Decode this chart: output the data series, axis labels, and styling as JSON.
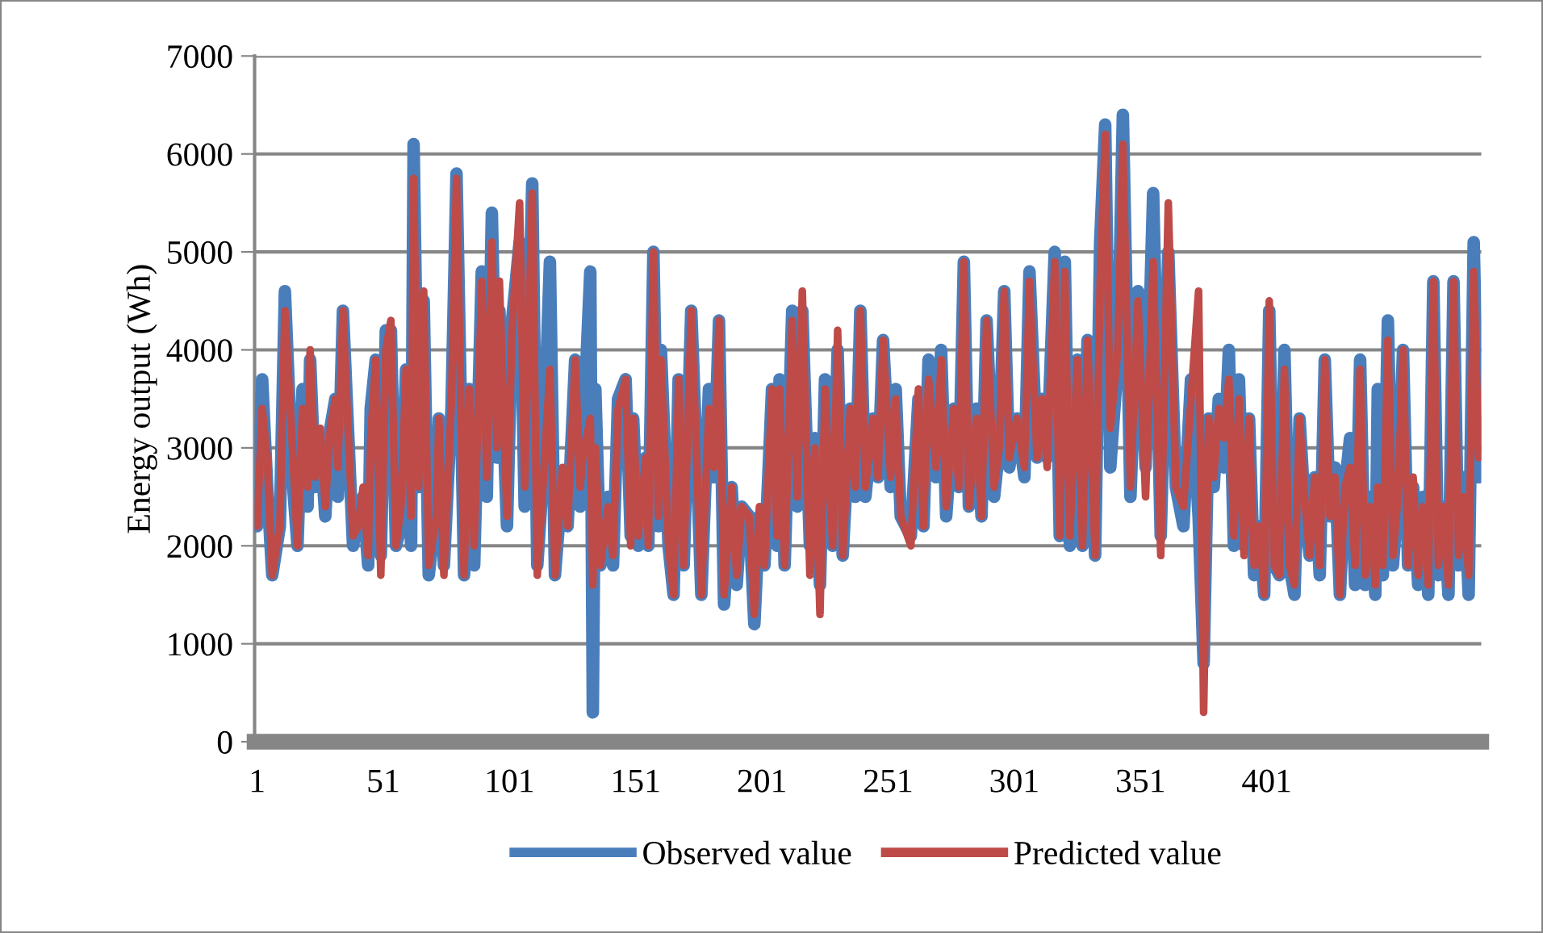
{
  "chart_data": {
    "type": "line",
    "ylabel": "Energy output (Wh)",
    "xlim": [
      0,
      486
    ],
    "xticks": [
      1,
      51,
      101,
      151,
      201,
      251,
      301,
      351,
      401
    ],
    "ylim": [
      0,
      7000
    ],
    "yticks": [
      0,
      1000,
      2000,
      3000,
      4000,
      5000,
      6000,
      7000
    ],
    "grid": "y",
    "legend": "bottom",
    "marker": "none",
    "line_style": "solid",
    "series": [
      {
        "name": "Observed value",
        "color": "#4a7ebb",
        "x": [
          1,
          3,
          5,
          7,
          10,
          12,
          15,
          17,
          19,
          21,
          22,
          24,
          26,
          28,
          30,
          32,
          33,
          35,
          37,
          39,
          41,
          43,
          45,
          46,
          48,
          50,
          52,
          54,
          56,
          58,
          60,
          62,
          63,
          65,
          67,
          69,
          72,
          73,
          75,
          78,
          80,
          83,
          85,
          87,
          90,
          92,
          94,
          96,
          97,
          100,
          102,
          105,
          107,
          110,
          112,
          114,
          117,
          119,
          122,
          124,
          127,
          129,
          130,
          133,
          134,
          135,
          137,
          140,
          142,
          144,
          147,
          149,
          150,
          152,
          155,
          156,
          158,
          160,
          161,
          164,
          166,
          168,
          170,
          173,
          175,
          177,
          180,
          182,
          184,
          186,
          189,
          191,
          193,
          196,
          198,
          200,
          202,
          205,
          207,
          208,
          210,
          213,
          215,
          217,
          220,
          222,
          224,
          226,
          229,
          231,
          233,
          236,
          238,
          240,
          242,
          245,
          247,
          249,
          252,
          254,
          256,
          260,
          263,
          265,
          267,
          270,
          272,
          274,
          277,
          279,
          281,
          283,
          286,
          288,
          290,
          293,
          295,
          297,
          299,
          302,
          305,
          307,
          310,
          312,
          314,
          317,
          319,
          321,
          323,
          326,
          328,
          330,
          333,
          335,
          337,
          339,
          342,
          344,
          347,
          350,
          353,
          356,
          359,
          362,
          365,
          368,
          371,
          374,
          376,
          378,
          380,
          382,
          384,
          386,
          388,
          390,
          392,
          394,
          396,
          398,
          400,
          402,
          404,
          406,
          408,
          410,
          412,
          414,
          416,
          418,
          420,
          422,
          424,
          426,
          428,
          430,
          432,
          434,
          436,
          438,
          440,
          442,
          444,
          445,
          447,
          449,
          451,
          453,
          455,
          457,
          459,
          461,
          463,
          465,
          467,
          469,
          471,
          473,
          475,
          477,
          479,
          481,
          483,
          485
        ],
        "values": [
          2200,
          3700,
          2600,
          1700,
          2200,
          4600,
          2700,
          2000,
          3600,
          2400,
          3900,
          2600,
          3100,
          2300,
          3200,
          3500,
          2500,
          4400,
          3200,
          2000,
          2300,
          2500,
          1800,
          3400,
          3900,
          1900,
          4200,
          4200,
          2000,
          2200,
          3800,
          2000,
          6100,
          2600,
          4500,
          1700,
          2400,
          3300,
          1800,
          3400,
          5800,
          1700,
          3600,
          1800,
          4800,
          2500,
          5400,
          2900,
          4400,
          2200,
          4300,
          5100,
          2400,
          5700,
          1800,
          2600,
          4900,
          1700,
          2700,
          2200,
          3900,
          2400,
          3000,
          4800,
          300,
          3600,
          1800,
          2500,
          1800,
          3500,
          3700,
          2100,
          3300,
          2000,
          2900,
          2000,
          5000,
          2200,
          4000,
          2000,
          1500,
          3700,
          1800,
          4400,
          3000,
          1500,
          3600,
          2700,
          4300,
          1400,
          2600,
          1600,
          2400,
          2300,
          1200,
          2300,
          1800,
          3600,
          2000,
          3700,
          1800,
          4400,
          2400,
          4400,
          2000,
          3100,
          1600,
          3700,
          2000,
          4000,
          1900,
          3400,
          2500,
          4400,
          2500,
          3300,
          2700,
          4100,
          2600,
          3600,
          2300,
          2100,
          3500,
          2200,
          3900,
          2700,
          4000,
          2300,
          3400,
          2600,
          4900,
          2400,
          3400,
          2300,
          4300,
          2500,
          3000,
          4600,
          2800,
          3300,
          2700,
          4800,
          2900,
          3500,
          2900,
          5000,
          2100,
          4900,
          2000,
          3900,
          2000,
          4100,
          1900,
          5100,
          6300,
          2800,
          3900,
          6400,
          2500,
          4600,
          2800,
          5600,
          2100,
          5000,
          2600,
          2200,
          3700,
          2300,
          800,
          3300,
          2600,
          3500,
          2800,
          4000,
          2000,
          3700,
          2000,
          3300,
          1700,
          2200,
          1500,
          4400,
          1800,
          1700,
          4000,
          1800,
          1500,
          3300,
          2400,
          1900,
          2700,
          1700,
          3900,
          2300,
          2800,
          1500,
          2600,
          3100,
          1600,
          3900,
          1600,
          2500,
          1500,
          3600,
          1700,
          4300,
          1800,
          2500,
          4000,
          1800,
          2600,
          1600,
          2500,
          1500,
          4700,
          1700,
          2400,
          1500,
          4700,
          1800,
          2700,
          1500,
          5100,
          2700
        ]
      },
      {
        "name": "Predicted value",
        "color": "#be4b48",
        "x": [
          1,
          3,
          5,
          7,
          10,
          12,
          15,
          17,
          19,
          21,
          22,
          24,
          26,
          28,
          30,
          32,
          33,
          35,
          37,
          39,
          41,
          43,
          45,
          46,
          48,
          50,
          52,
          54,
          56,
          58,
          60,
          62,
          63,
          65,
          67,
          69,
          72,
          73,
          75,
          78,
          80,
          83,
          85,
          87,
          90,
          92,
          94,
          96,
          97,
          100,
          102,
          105,
          107,
          110,
          112,
          114,
          117,
          119,
          122,
          124,
          127,
          129,
          130,
          133,
          134,
          135,
          137,
          140,
          142,
          144,
          147,
          149,
          150,
          152,
          155,
          156,
          158,
          160,
          161,
          164,
          166,
          168,
          170,
          173,
          175,
          177,
          180,
          182,
          184,
          186,
          189,
          191,
          193,
          196,
          198,
          200,
          202,
          205,
          207,
          208,
          210,
          213,
          215,
          217,
          220,
          222,
          224,
          226,
          229,
          231,
          233,
          236,
          238,
          240,
          242,
          245,
          247,
          249,
          252,
          254,
          256,
          260,
          263,
          265,
          267,
          270,
          272,
          274,
          277,
          279,
          281,
          283,
          286,
          288,
          290,
          293,
          295,
          297,
          299,
          302,
          305,
          307,
          310,
          312,
          314,
          317,
          319,
          321,
          323,
          326,
          328,
          330,
          333,
          335,
          337,
          339,
          342,
          344,
          347,
          350,
          353,
          356,
          359,
          362,
          365,
          368,
          371,
          374,
          376,
          378,
          380,
          382,
          384,
          386,
          388,
          390,
          392,
          394,
          396,
          398,
          400,
          402,
          404,
          406,
          408,
          410,
          412,
          414,
          416,
          418,
          420,
          422,
          424,
          426,
          428,
          430,
          432,
          434,
          436,
          438,
          440,
          442,
          444,
          445,
          447,
          449,
          451,
          453,
          455,
          457,
          459,
          461,
          463,
          465,
          467,
          469,
          471,
          473,
          475,
          477,
          479,
          481,
          483,
          485
        ],
        "values": [
          2200,
          3400,
          2900,
          1700,
          2200,
          4400,
          3000,
          2000,
          3400,
          2600,
          4000,
          2700,
          3200,
          2400,
          3200,
          3500,
          2800,
          4400,
          3200,
          2100,
          2200,
          2600,
          1900,
          3100,
          3900,
          1700,
          4000,
          4300,
          2000,
          2400,
          3800,
          2300,
          5750,
          2600,
          4600,
          1800,
          2300,
          3300,
          1700,
          3500,
          5750,
          1700,
          3600,
          2000,
          4700,
          2700,
          5100,
          3000,
          4700,
          2300,
          4200,
          5500,
          2600,
          5600,
          1700,
          2500,
          3800,
          1700,
          2800,
          2200,
          3900,
          2600,
          2900,
          3300,
          1600,
          3000,
          1800,
          2400,
          1900,
          3400,
          3700,
          2000,
          3300,
          2100,
          2900,
          2000,
          5000,
          2300,
          3900,
          2000,
          1500,
          3700,
          1800,
          4400,
          3000,
          1500,
          3400,
          2800,
          4300,
          1500,
          2600,
          1700,
          2400,
          2300,
          1300,
          2400,
          1800,
          3600,
          2100,
          3600,
          1800,
          4300,
          2500,
          4600,
          1700,
          3000,
          1300,
          3600,
          2000,
          4200,
          1900,
          3400,
          2600,
          4400,
          2600,
          3300,
          2700,
          4100,
          2700,
          3500,
          2300,
          2000,
          3600,
          2200,
          3700,
          2800,
          3900,
          2400,
          3400,
          2600,
          4900,
          2400,
          3300,
          2300,
          4300,
          2600,
          3000,
          4600,
          2900,
          3300,
          2800,
          4700,
          2900,
          3500,
          2800,
          4900,
          2100,
          4800,
          2100,
          3900,
          2000,
          4100,
          1900,
          4700,
          6200,
          3200,
          4000,
          6100,
          2600,
          4500,
          2500,
          4900,
          1900,
          5500,
          2600,
          2400,
          3500,
          4600,
          300,
          3300,
          2700,
          3400,
          3100,
          3700,
          2100,
          3500,
          1900,
          3300,
          1800,
          2200,
          1500,
          4500,
          1800,
          1700,
          3800,
          1800,
          1600,
          3300,
          2500,
          1900,
          2700,
          1800,
          3900,
          2300,
          2700,
          1500,
          2600,
          2800,
          1800,
          3800,
          1700,
          2400,
          1600,
          2600,
          1800,
          4100,
          1900,
          2500,
          4000,
          1800,
          2700,
          1700,
          2400,
          1600,
          4700,
          1800,
          2400,
          1600,
          4700,
          1900,
          2500,
          1700,
          4800,
          2900
        ]
      }
    ]
  }
}
